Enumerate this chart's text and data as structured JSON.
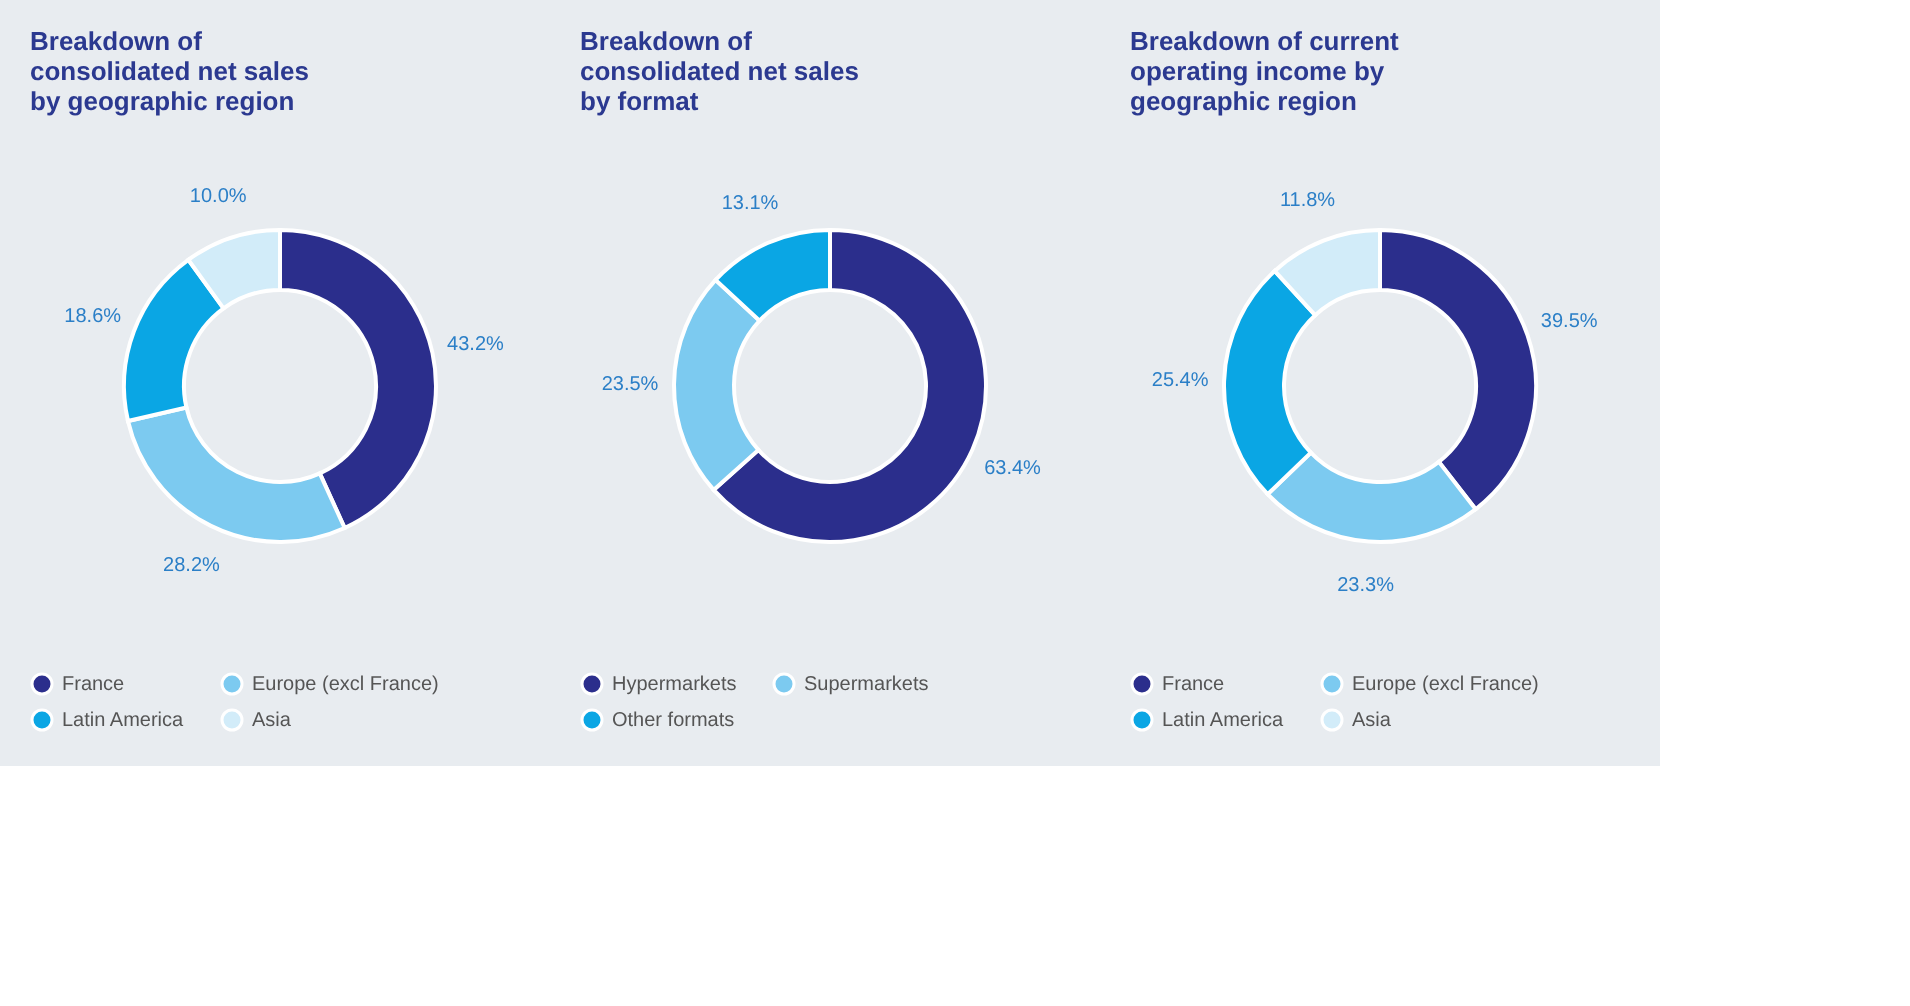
{
  "chart_data": [
    {
      "type": "donut",
      "title": "Breakdown of consolidated net sales by geographic region",
      "categories": [
        "France",
        "Europe (excl France)",
        "Latin America",
        "Asia"
      ],
      "values": [
        43.2,
        28.2,
        18.6,
        10.0
      ],
      "value_labels": [
        "43.2%",
        "28.2%",
        "18.6%",
        "10.0%"
      ],
      "colors": [
        "#2b2e8c",
        "#7ccaf0",
        "#0aa6e4",
        "#d2ecf9"
      ],
      "legend": "bottom"
    },
    {
      "type": "donut",
      "title": "Breakdown of consolidated net sales by format",
      "categories": [
        "Hypermarkets",
        "Supermarkets",
        "Other formats"
      ],
      "values": [
        63.4,
        23.5,
        13.1
      ],
      "value_labels": [
        "63.4%",
        "23.5%",
        "13.1%"
      ],
      "colors": [
        "#2b2e8c",
        "#7ccaf0",
        "#0aa6e4"
      ],
      "legend": "bottom"
    },
    {
      "type": "donut",
      "title": "Breakdown of current operating income by geographic region",
      "categories": [
        "France",
        "Europe (excl France)",
        "Latin America",
        "Asia"
      ],
      "values": [
        39.5,
        23.3,
        25.4,
        11.8
      ],
      "value_labels": [
        "39.5%",
        "23.3%",
        "25.4%",
        "11.8%"
      ],
      "colors": [
        "#2b2e8c",
        "#7ccaf0",
        "#0aa6e4",
        "#d2ecf9"
      ],
      "legend": "bottom"
    }
  ]
}
